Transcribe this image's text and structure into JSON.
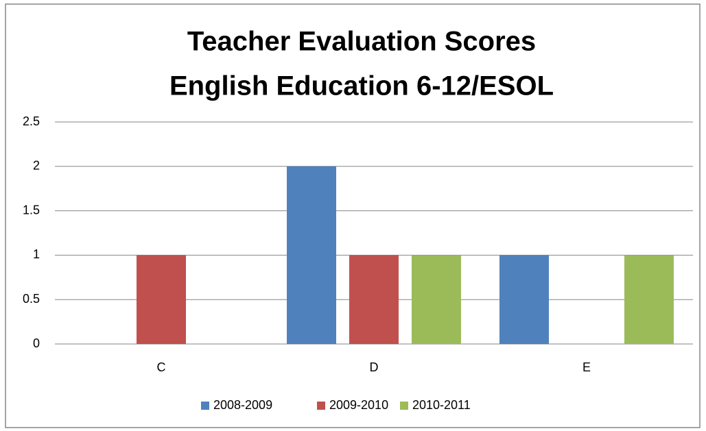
{
  "chart_data": {
    "type": "bar",
    "title": [
      "Teacher Evaluation Scores",
      "English Education 6-12/ESOL"
    ],
    "categories": [
      "C",
      "D",
      "E"
    ],
    "series": [
      {
        "name": "2008-2009",
        "color": "#4f81bd",
        "values": [
          0,
          2,
          1
        ]
      },
      {
        "name": "2009-2010",
        "color": "#c0504d",
        "values": [
          1,
          1,
          0
        ]
      },
      {
        "name": "2010-2011",
        "color": "#9bbb59",
        "values": [
          0,
          1,
          1
        ]
      }
    ],
    "ylim": [
      0,
      2.5
    ],
    "yticks": [
      0,
      0.5,
      1,
      1.5,
      2,
      2.5
    ],
    "grid": true,
    "legend": "bottom"
  }
}
